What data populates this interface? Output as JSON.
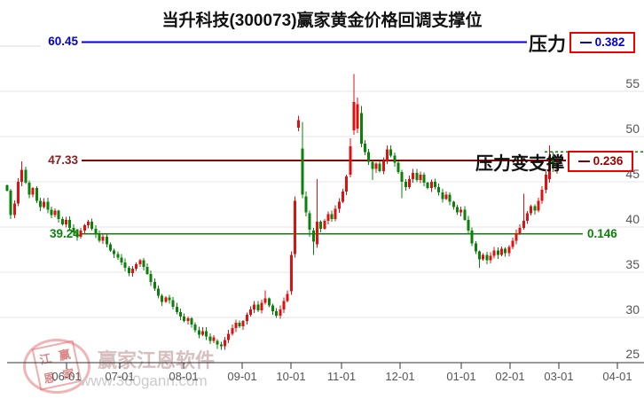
{
  "title": "当升科技(300073)赢家黄金价格回调支撑位",
  "labels": {
    "resistance": "压力",
    "resistance_to_support": "压力变支撑"
  },
  "watermark": {
    "seal_chars": [
      "江",
      "赢",
      "恩",
      "家"
    ],
    "brand": "赢家江恩软件",
    "url": "www.360gann.com"
  },
  "colors": {
    "up_candle": "#e01010",
    "down_candle": "#0a820a",
    "blue_level": "#0000dd",
    "darkred_level": "#8b0000",
    "green_level": "#0a820a",
    "grid": "#e6e6e6",
    "axis": "#333333",
    "box_border": "#ee0000"
  },
  "chart_data": {
    "type": "candlestick",
    "title": "当升科技(300073)赢家黄金价格回调支撑位",
    "y_range": [
      25,
      57
    ],
    "y_tick_labels": [
      "55",
      "50",
      "45",
      "40",
      "35",
      "30",
      "25"
    ],
    "x_tick_labels": [
      "06-01",
      "07-01",
      "08-01",
      "09-01",
      "10-01",
      "11-01",
      "12-01",
      "01-01",
      "02-01",
      "03-01",
      "04-01"
    ],
    "grid_values": [
      55,
      50,
      45,
      40,
      35,
      30
    ],
    "levels": {
      "blue": {
        "price": "60.45",
        "ratio": "0.382",
        "value": 60.45,
        "name": "压力"
      },
      "darkred": {
        "price": "47.33",
        "ratio": "0.236",
        "value": 47.33,
        "name": "压力变支撑"
      },
      "green": {
        "price": "39.24",
        "ratio": "0.146",
        "value": 39.24
      },
      "dotted_high_value": 48.3
    },
    "open_first": 44.6,
    "closes": [
      44.0,
      41.3,
      42.6,
      45.0,
      46.3,
      44.9,
      43.6,
      44.3,
      42.9,
      42.2,
      42.8,
      41.9,
      41.3,
      41.8,
      40.9,
      40.3,
      40.8,
      39.9,
      39.4,
      38.9,
      39.6,
      40.2,
      40.6,
      39.8,
      39.2,
      38.5,
      38.9,
      38.1,
      37.4,
      37.0,
      36.6,
      36.1,
      35.5,
      34.9,
      35.4,
      35.9,
      36.3,
      35.6,
      34.8,
      33.9,
      33.2,
      32.4,
      31.7,
      32.2,
      31.9,
      31.2,
      30.6,
      30.1,
      29.6,
      29.9,
      29.2,
      28.6,
      28.1,
      28.5,
      27.9,
      27.4,
      27.8,
      27.0,
      26.8,
      27.5,
      28.2,
      28.8,
      29.4,
      29.0,
      29.6,
      30.3,
      30.9,
      31.4,
      30.8,
      31.6,
      32.1,
      31.3,
      30.7,
      30.2,
      30.9,
      31.8,
      32.6,
      36.9,
      42.9,
      51.8,
      43.6,
      41.6,
      39.7,
      38.4,
      40.6,
      39.8,
      40.7,
      41.4,
      40.9,
      42.0,
      42.8,
      43.9,
      45.6,
      48.9,
      53.8,
      53.6,
      49.2,
      48.3,
      47.2,
      46.4,
      47.0,
      46.2,
      47.3,
      48.6,
      47.9,
      47.1,
      46.1,
      45.0,
      44.4,
      45.3,
      46.0,
      45.2,
      45.8,
      44.9,
      44.3,
      45.0,
      44.4,
      43.8,
      43.1,
      43.6,
      42.8,
      42.2,
      41.6,
      41.9,
      40.8,
      39.6,
      38.2,
      37.3,
      36.4,
      36.9,
      36.3,
      36.8,
      37.4,
      36.9,
      37.6,
      37.1,
      37.8,
      38.5,
      39.3,
      39.9,
      40.7,
      41.5,
      42.3,
      41.8,
      42.9,
      44.1,
      45.8,
      47.8,
      46.6,
      47.0
    ],
    "ohlc_overrides": {
      "4": [
        45.0,
        47.25,
        44.5,
        46.3
      ],
      "33": [
        35.5,
        35.7,
        34.55,
        34.9
      ],
      "57": [
        27.4,
        27.6,
        26.5,
        27.0
      ],
      "58": [
        27.0,
        27.3,
        26.4,
        26.8
      ],
      "70": [
        31.6,
        33.0,
        31.4,
        32.1
      ],
      "77": [
        32.9,
        37.3,
        32.5,
        36.9
      ],
      "78": [
        37.0,
        43.4,
        36.6,
        42.9
      ],
      "79": [
        51.0,
        52.3,
        50.6,
        51.8
      ],
      "80": [
        48.7,
        51.6,
        43.2,
        43.6
      ],
      "81": [
        43.4,
        43.9,
        41.2,
        41.6
      ],
      "82": [
        41.5,
        41.8,
        38.9,
        39.7
      ],
      "83": [
        39.6,
        39.9,
        36.9,
        38.4
      ],
      "84": [
        38.1,
        45.3,
        37.7,
        40.6
      ],
      "93": [
        45.8,
        49.8,
        45.5,
        48.9
      ],
      "94": [
        50.7,
        56.9,
        50.2,
        53.8
      ],
      "95": [
        50.9,
        54.3,
        50.4,
        53.6
      ],
      "96": [
        52.6,
        53.4,
        48.8,
        49.2
      ],
      "99": [
        47.2,
        47.4,
        45.2,
        46.4
      ],
      "107": [
        46.1,
        46.3,
        43.2,
        45.0
      ],
      "128": [
        37.3,
        37.4,
        35.5,
        36.4
      ],
      "140": [
        39.9,
        43.7,
        39.7,
        40.7
      ],
      "147": [
        45.3,
        49.0,
        44.9,
        47.8
      ],
      "148": [
        47.8,
        48.3,
        46.1,
        46.6
      ],
      "149": [
        46.4,
        47.6,
        45.9,
        47.0
      ]
    }
  }
}
